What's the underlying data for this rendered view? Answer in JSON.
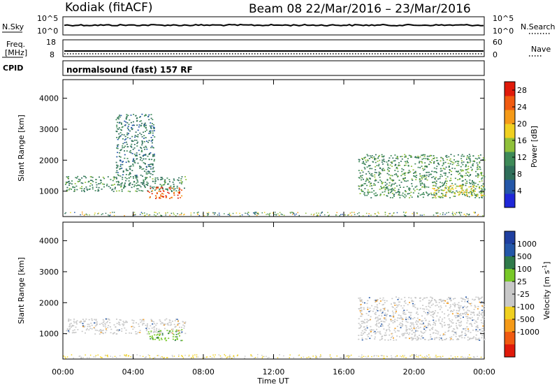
{
  "header": {
    "station": "Kodiak  (fitACF)",
    "beam_and_dates": "Beam 08  22/Mar/2016 – 23/Mar/2016"
  },
  "top_panels": {
    "nsky_label": "N.Sky",
    "nsky_ticks": [
      "10^5",
      "10^0"
    ],
    "nsearch_label": "N.Search",
    "nsearch_ticks": [
      "10^5",
      "10^0"
    ],
    "freq_label_1": "Freq.",
    "freq_label_2": "[MHz]",
    "freq_ticks": [
      "18",
      "8"
    ],
    "nave_label": "Nave",
    "nave_ticks": [
      "60",
      "0"
    ],
    "cpid_label": "CPID",
    "cpid_value": "normalsound (fast) 157 RF"
  },
  "colors": {
    "power_scale": [
      "#1f27d8",
      "#2457a8",
      "#2f6e5a",
      "#3e8a58",
      "#8fc03a",
      "#f0d020",
      "#f59a18",
      "#f05a10",
      "#e01a0a"
    ],
    "velocity_scale": [
      "#e01a0a",
      "#f05a10",
      "#f59a18",
      "#f0d020",
      "#c8c8c8",
      "#c8c8c8",
      "#78c828",
      "#2f7a4a",
      "#2457a8",
      "#1f3fa0"
    ],
    "ground_scatter": "#c8c8c8"
  },
  "chart_data": [
    {
      "type": "heatmap",
      "title": "Power",
      "xlabel": "Time UT",
      "ylabel": "Slant Range [km]",
      "xlim": [
        "00:00",
        "24:00"
      ],
      "ylim": [
        180,
        4600
      ],
      "x_tick_labels": [
        "00:00",
        "04:00",
        "08:00",
        "12:00",
        "16:00",
        "20:00",
        "00:00"
      ],
      "y_ticks": [
        1000,
        2000,
        3000,
        4000
      ],
      "colorbar": {
        "label": "Power [dB]",
        "ticks": [
          4,
          8,
          12,
          16,
          20,
          24,
          28
        ],
        "range": [
          0,
          30
        ]
      },
      "regions": [
        {
          "name": "E-region band early",
          "t_start_h": 0.1,
          "t_end_h": 7.0,
          "range_km": [
            1000,
            1500
          ],
          "level_db": 10
        },
        {
          "name": "strong echo",
          "t_start_h": 4.8,
          "t_end_h": 6.8,
          "range_km": [
            780,
            1150
          ],
          "level_db": 27
        },
        {
          "name": "F-region streaks early",
          "t_start_h": 3.0,
          "t_end_h": 5.2,
          "range_km": [
            1500,
            3500
          ],
          "level_db": 8
        },
        {
          "name": "F-region band late",
          "t_start_h": 16.8,
          "t_end_h": 24.0,
          "range_km": [
            800,
            2200
          ],
          "level_db": 11
        },
        {
          "name": "late strong echo",
          "t_start_h": 21.0,
          "t_end_h": 24.0,
          "range_km": [
            850,
            1200
          ],
          "level_db": 18
        }
      ]
    },
    {
      "type": "heatmap",
      "title": "Velocity",
      "xlabel": "Time UT",
      "ylabel": "Slant Range [km]",
      "xlim": [
        "00:00",
        "24:00"
      ],
      "ylim": [
        180,
        4600
      ],
      "x_tick_labels": [
        "00:00",
        "04:00",
        "08:00",
        "12:00",
        "16:00",
        "20:00",
        "00:00"
      ],
      "y_ticks": [
        1000,
        2000,
        3000,
        4000
      ],
      "colorbar": {
        "label": "Velocity  [m s^-1]",
        "tick_labels": [
          "1000",
          "500",
          "100",
          "25",
          "-25",
          "-100",
          "-500",
          "-1000"
        ]
      },
      "regions": [
        {
          "name": "ground scatter early",
          "t_start_h": 0.1,
          "t_end_h": 7.0,
          "range_km": [
            1000,
            1500
          ],
          "velocity": 0
        },
        {
          "name": "positive velocity echo",
          "t_start_h": 4.8,
          "t_end_h": 6.8,
          "range_km": [
            780,
            1150
          ],
          "velocity": 120
        },
        {
          "name": "ground scatter late",
          "t_start_h": 16.8,
          "t_end_h": 24.0,
          "range_km": [
            800,
            2200
          ],
          "velocity": 0
        }
      ]
    }
  ]
}
